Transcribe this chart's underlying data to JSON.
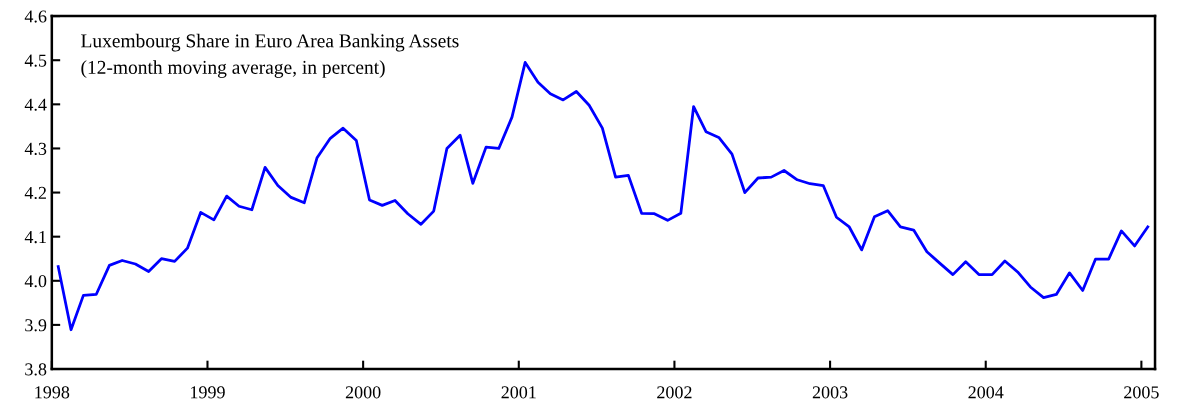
{
  "chart_data": {
    "type": "line",
    "title": "Luxembourg Share in Euro Area Banking Assets",
    "subtitle": "(12-month moving average, in percent)",
    "x": [
      "1998-01-16",
      "1998-02-15",
      "1998-03-16",
      "1998-04-15",
      "1998-05-16",
      "1998-06-15",
      "1998-07-16",
      "1998-08-16",
      "1998-09-15",
      "1998-10-16",
      "1998-11-15",
      "1998-12-16",
      "1999-01-16",
      "1999-02-15",
      "1999-03-16",
      "1999-04-15",
      "1999-05-16",
      "1999-06-15",
      "1999-07-16",
      "1999-08-16",
      "1999-09-15",
      "1999-10-16",
      "1999-11-15",
      "1999-12-16",
      "2000-01-16",
      "2000-02-15",
      "2000-03-16",
      "2000-04-15",
      "2000-05-16",
      "2000-06-15",
      "2000-07-16",
      "2000-08-16",
      "2000-09-15",
      "2000-10-16",
      "2000-11-15",
      "2000-12-16",
      "2001-01-16",
      "2001-02-15",
      "2001-03-16",
      "2001-04-15",
      "2001-05-16",
      "2001-06-15",
      "2001-07-16",
      "2001-08-16",
      "2001-09-15",
      "2001-10-16",
      "2001-11-15",
      "2001-12-16",
      "2002-01-16",
      "2002-02-15",
      "2002-03-16",
      "2002-04-15",
      "2002-05-16",
      "2002-06-15",
      "2002-07-16",
      "2002-08-16",
      "2002-09-15",
      "2002-10-16",
      "2002-11-15",
      "2002-12-16",
      "2003-01-16",
      "2003-02-15",
      "2003-03-16",
      "2003-04-15",
      "2003-05-16",
      "2003-06-15",
      "2003-07-16",
      "2003-08-16",
      "2003-09-15",
      "2003-10-16",
      "2003-11-15",
      "2003-12-16",
      "2004-01-16",
      "2004-02-15",
      "2004-03-16",
      "2004-04-15",
      "2004-05-16",
      "2004-06-15",
      "2004-07-16",
      "2004-08-16",
      "2004-09-15",
      "2004-10-16",
      "2004-11-15",
      "2004-12-16",
      "2005-01-16"
    ],
    "series": [
      {
        "color": "#0000ff",
        "values": [
          4.032,
          3.889,
          3.967,
          3.969,
          4.035,
          4.046,
          4.038,
          4.021,
          4.05,
          4.044,
          4.074,
          4.155,
          4.138,
          4.192,
          4.169,
          4.161,
          4.257,
          4.216,
          4.189,
          4.177,
          4.279,
          4.323,
          4.346,
          4.318,
          4.183,
          4.171,
          4.182,
          4.152,
          4.128,
          4.158,
          4.3,
          4.33,
          4.221,
          4.303,
          4.3,
          4.371,
          4.495,
          4.45,
          4.424,
          4.41,
          4.429,
          4.398,
          4.346,
          4.235,
          4.239,
          4.153,
          4.152,
          4.137,
          4.153,
          4.395,
          4.338,
          4.325,
          4.287,
          4.2,
          4.233,
          4.235,
          4.25,
          4.229,
          4.22,
          4.216,
          4.144,
          4.122,
          4.07,
          4.145,
          4.159,
          4.122,
          4.115,
          4.066,
          4.04,
          4.014,
          4.043,
          4.014,
          4.014,
          4.045,
          4.02,
          3.986,
          3.962,
          3.969,
          4.018,
          3.978,
          4.049,
          4.049,
          4.113,
          4.079,
          4.122
        ]
      }
    ],
    "xlim": [
      "1998-01-01",
      "2005-02-02"
    ],
    "xticks": [
      "1998",
      "1999",
      "2000",
      "2001",
      "2002",
      "2003",
      "2004",
      "2005"
    ],
    "ylim": [
      3.8,
      4.6
    ],
    "yticks": [
      3.8,
      3.9,
      {
        "value": 4.0,
        "label": "4.0"
      },
      4.1,
      4.2,
      4.3,
      4.4,
      4.5,
      4.6
    ],
    "marker": "none",
    "line_style": "solid"
  }
}
